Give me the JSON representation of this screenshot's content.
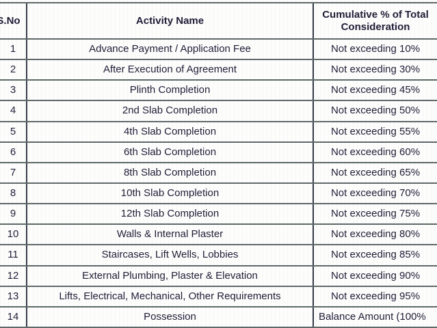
{
  "table": {
    "headers": {
      "sno": "S.No",
      "activity": "Activity Name",
      "cumulative_line1": "Cumulative % of Total",
      "cumulative_line2": "Consideration"
    },
    "rows": [
      {
        "sno": "1",
        "activity": "Advance Payment / Application Fee",
        "cumulative": "Not exceeding 10%"
      },
      {
        "sno": "2",
        "activity": "After Execution of Agreement",
        "cumulative": "Not exceeding 30%"
      },
      {
        "sno": "3",
        "activity": "Plinth Completion",
        "cumulative": "Not exceeding 45%"
      },
      {
        "sno": "4",
        "activity": "2nd Slab Completion",
        "cumulative": "Not exceeding 50%"
      },
      {
        "sno": "5",
        "activity": "4th Slab Completion",
        "cumulative": "Not exceeding 55%"
      },
      {
        "sno": "6",
        "activity": "6th Slab Completion",
        "cumulative": "Not exceeding 60%"
      },
      {
        "sno": "7",
        "activity": "8th Slab Completion",
        "cumulative": "Not exceeding 65%"
      },
      {
        "sno": "8",
        "activity": "10th Slab Completion",
        "cumulative": "Not exceeding 70%"
      },
      {
        "sno": "9",
        "activity": "12th Slab Completion",
        "cumulative": "Not exceeding 75%"
      },
      {
        "sno": "10",
        "activity": "Walls & Internal Plaster",
        "cumulative": "Not exceeding 80%"
      },
      {
        "sno": "11",
        "activity": "Staircases, Lift Wells, Lobbies",
        "cumulative": "Not exceeding 85%"
      },
      {
        "sno": "12",
        "activity": "External Plumbing, Plaster & Elevation",
        "cumulative": "Not exceeding 90%"
      },
      {
        "sno": "13",
        "activity": "Lifts, Electrical, Mechanical, Other Requirements",
        "cumulative": "Not exceeding 95%"
      },
      {
        "sno": "14",
        "activity": "Possession",
        "cumulative": "Balance Amount (100%"
      }
    ]
  },
  "colors": {
    "text": "#201d36",
    "grid_horizontal": "#5d6868",
    "grid_vertical": "#343b48",
    "background": "#fdfdfc"
  }
}
